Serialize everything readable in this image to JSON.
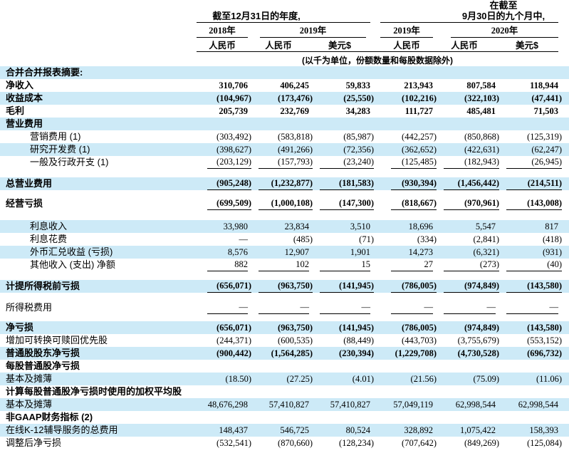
{
  "colors": {
    "row_shade": "#cdeaf7",
    "rule": "#000000",
    "text": "#000000"
  },
  "header": {
    "group1": {
      "title": "截至12月31日的年度,",
      "year1": "2018年",
      "year2": "2019年",
      "cur1": "人民币",
      "cur2": "人民币",
      "cur3": "美元$"
    },
    "group2": {
      "title_line1": "在截至",
      "title_line2": "9月30日的九个月中,",
      "year1": "2019年",
      "year2": "2020年",
      "cur1": "人民币",
      "cur2": "人民币",
      "cur3": "美元$"
    },
    "units_note": "(以千为单位，份额数量和每股数据除外)"
  },
  "table": {
    "columns": [
      "2018年 人民币",
      "2019年 人民币",
      "2019年 美元$",
      "2019年九个月 人民币",
      "2020年九个月 人民币",
      "2020年九个月 美元$"
    ],
    "rows": [
      {
        "label": "合并合并报表摘要:",
        "section": true,
        "bold": true,
        "shaded": true
      },
      {
        "label": "净收入",
        "bold": true,
        "shaded": false,
        "values": [
          "310,706",
          "406,245",
          "59,833",
          "213,943",
          "807,584",
          "118,944"
        ]
      },
      {
        "label": "收益成本",
        "bold": true,
        "shaded": true,
        "values": [
          "(104,967)",
          "(173,476)",
          "(25,550)",
          "(102,216)",
          "(322,103)",
          "(47,441)"
        ]
      },
      {
        "label": "毛利",
        "bold": true,
        "shaded": false,
        "values": [
          "205,739",
          "232,769",
          "34,283",
          "111,727",
          "485,481",
          "71,503"
        ]
      },
      {
        "label": "营业费用",
        "section": true,
        "bold": true,
        "shaded": true
      },
      {
        "label": "营销费用 (1)",
        "indent": true,
        "shaded": false,
        "values": [
          "(303,492)",
          "(583,818)",
          "(85,987)",
          "(442,257)",
          "(850,868)",
          "(125,319)"
        ]
      },
      {
        "label": "研究开发费 (1)",
        "indent": true,
        "shaded": true,
        "values": [
          "(398,627)",
          "(491,266)",
          "(72,356)",
          "(362,652)",
          "(422,631)",
          "(62,247)"
        ]
      },
      {
        "label": "一般及行政开支 (1)",
        "indent": true,
        "shaded": false,
        "rule": true,
        "values": [
          "(203,129)",
          "(157,793)",
          "(23,240)",
          "(125,485)",
          "(182,943)",
          "(26,945)"
        ]
      },
      {
        "spacer": true,
        "h": 12
      },
      {
        "label": "总营业费用",
        "bold": true,
        "shaded": true,
        "rule": true,
        "values": [
          "(905,248)",
          "(1,232,877)",
          "(181,583)",
          "(930,394)",
          "(1,456,442)",
          "(214,511)"
        ]
      },
      {
        "spacer": true,
        "h": 10
      },
      {
        "label": "经营亏损",
        "bold": true,
        "shaded": false,
        "rule": true,
        "values": [
          "(699,509)",
          "(1,000,108)",
          "(147,300)",
          "(818,667)",
          "(970,961)",
          "(143,008)"
        ]
      },
      {
        "spacer": true,
        "h": 14
      },
      {
        "label": "利息收入",
        "indent": true,
        "shaded": true,
        "values": [
          "33,980",
          "23,834",
          "3,510",
          "18,696",
          "5,547",
          "817"
        ]
      },
      {
        "label": "利息花费",
        "indent": true,
        "shaded": false,
        "values": [
          "—",
          "(485)",
          "(71)",
          "(334)",
          "(2,841)",
          "(418)"
        ]
      },
      {
        "label": "外币汇兑收益 (亏损)",
        "indent": true,
        "shaded": true,
        "values": [
          "8,576",
          "12,907",
          "1,901",
          "14,273",
          "(6,321)",
          "(931)"
        ]
      },
      {
        "label": "其他收入 (支出) 净额",
        "indent": true,
        "shaded": false,
        "rule": true,
        "values": [
          "882",
          "102",
          "15",
          "27",
          "(273)",
          "(40)"
        ]
      },
      {
        "spacer": true,
        "h": 12
      },
      {
        "label": "计提所得税前亏损",
        "bold": true,
        "shaded": true,
        "rule": true,
        "values": [
          "(656,071)",
          "(963,750)",
          "(141,945)",
          "(786,005)",
          "(974,849)",
          "(143,580)"
        ]
      },
      {
        "spacer": true,
        "h": 12
      },
      {
        "label": "所得税费用",
        "shaded": false,
        "rule": true,
        "values": [
          "—",
          "—",
          "—",
          "—",
          "—",
          "—"
        ]
      },
      {
        "spacer": true,
        "h": 10
      },
      {
        "label": "净亏损",
        "bold": true,
        "shaded": true,
        "values": [
          "(656,071)",
          "(963,750)",
          "(141,945)",
          "(786,005)",
          "(974,849)",
          "(143,580)"
        ]
      },
      {
        "label": "增加可转换可赎回优先股",
        "shaded": false,
        "values": [
          "(244,371)",
          "(600,535)",
          "(88,449)",
          "(443,703)",
          "(3,755,679)",
          "(553,152)"
        ]
      },
      {
        "label": "普通股股东净亏损",
        "bold": true,
        "shaded": true,
        "values": [
          "(900,442)",
          "(1,564,285)",
          "(230,394)",
          "(1,229,708)",
          "(4,730,528)",
          "(696,732)"
        ]
      },
      {
        "label": "每股普通股净亏损",
        "section": true,
        "bold": true,
        "shaded": false
      },
      {
        "label": "基本及摊薄",
        "shaded": true,
        "values": [
          "(18.50)",
          "(27.25)",
          "(4.01)",
          "(21.56)",
          "(75.09)",
          "(11.06)"
        ]
      },
      {
        "label": "计算每股普通股净亏损时使用的加权平均股",
        "section": true,
        "bold": true,
        "shaded": false
      },
      {
        "label": "基本及摊薄",
        "shaded": true,
        "values": [
          "48,676,298",
          "57,410,827",
          "57,410,827",
          "57,049,119",
          "62,998,544",
          "62,998,544"
        ]
      },
      {
        "label": "非GAAP财务指标 (2)",
        "section": true,
        "bold": true,
        "shaded": false
      },
      {
        "label": "在线K-12辅导服务的总费用",
        "shaded": true,
        "values": [
          "148,437",
          "546,725",
          "80,524",
          "328,892",
          "1,075,422",
          "158,393"
        ]
      },
      {
        "label": "调整后净亏损",
        "shaded": false,
        "values": [
          "(532,541)",
          "(870,660)",
          "(128,234)",
          "(707,642)",
          "(849,269)",
          "(125,084)"
        ]
      }
    ]
  }
}
